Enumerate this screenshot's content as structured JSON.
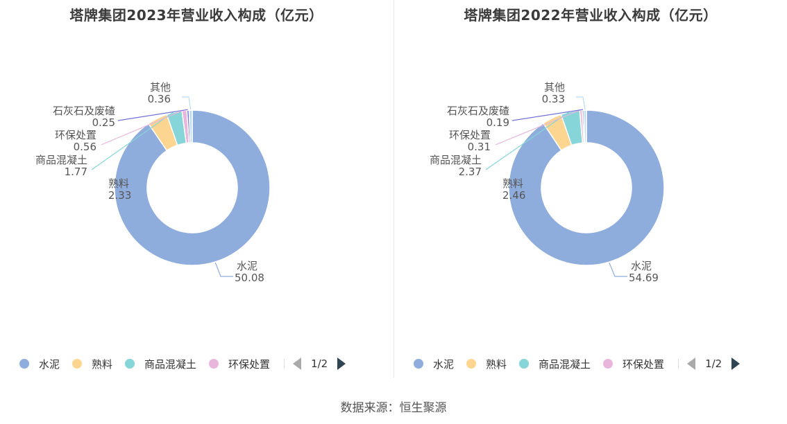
{
  "source": "数据来源：恒生聚源",
  "colors": {
    "水泥": "#8eaddc",
    "熟料": "#fcd690",
    "商品混凝土": "#86d5d8",
    "环保处置": "#e8b6dc",
    "石灰石及废碴": "#6f73d6",
    "其他": "#b9dcf3"
  },
  "chart_data": [
    {
      "type": "pie",
      "donut": true,
      "title": "塔牌集团2023年营业收入构成（亿元）",
      "slices": [
        {
          "name": "水泥",
          "label": "水泥",
          "value": 50.08,
          "value_label": "50.08"
        },
        {
          "name": "熟料",
          "label": "熟料",
          "value": 2.33,
          "value_label": "2.33"
        },
        {
          "name": "商品混凝土",
          "label": "商品混凝土",
          "value": 1.77,
          "value_label": "1.77"
        },
        {
          "name": "环保处置",
          "label": "环保处置",
          "value": 0.56,
          "value_label": "0.56"
        },
        {
          "name": "石灰石及废碴",
          "label": "石灰石及废碴",
          "value": 0.25,
          "value_label": "0.25"
        },
        {
          "name": "其他",
          "label": "其他",
          "value": 0.36,
          "value_label": "0.36"
        }
      ],
      "legend": {
        "items": [
          "水泥",
          "熟料",
          "商品混凝土",
          "环保处置"
        ],
        "page": "1/2",
        "placement": "bottom"
      }
    },
    {
      "type": "pie",
      "donut": true,
      "title": "塔牌集团2022年营业收入构成（亿元）",
      "slices": [
        {
          "name": "水泥",
          "label": "水泥",
          "value": 54.69,
          "value_label": "54.69"
        },
        {
          "name": "熟料",
          "label": "熟料",
          "value": 2.46,
          "value_label": "2.46"
        },
        {
          "name": "商品混凝土",
          "label": "商品混凝土",
          "value": 2.37,
          "value_label": "2.37"
        },
        {
          "name": "环保处置",
          "label": "环保处置",
          "value": 0.31,
          "value_label": "0.31"
        },
        {
          "name": "石灰石及废碴",
          "label": "石灰石及废碴",
          "value": 0.19,
          "value_label": "0.19"
        },
        {
          "name": "其他",
          "label": "其他",
          "value": 0.33,
          "value_label": "0.33"
        }
      ],
      "legend": {
        "items": [
          "水泥",
          "熟料",
          "商品混凝土",
          "环保处置"
        ],
        "page": "1/2",
        "placement": "bottom"
      }
    }
  ]
}
